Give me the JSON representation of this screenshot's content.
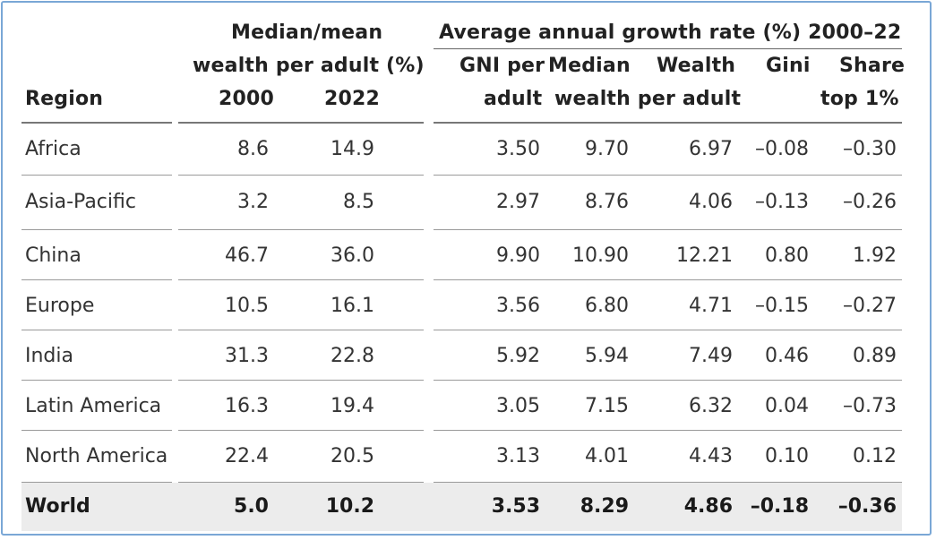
{
  "header": {
    "region_label": "Region",
    "group1_line1": "Median/mean",
    "group1_line2": "wealth per adult (%)",
    "col_2000": "2000",
    "col_2022": "2022",
    "group2_title": "Average annual growth rate (%) 2000–22",
    "gni_line1": "GNI per",
    "gni_line2": "adult",
    "median_line1": "Median",
    "median_line2": "wealth per adult",
    "wealth_line1": "Wealth",
    "gini_line1": "Gini",
    "share_line1": "Share",
    "share_line2": "top 1%"
  },
  "rows": [
    {
      "region": "Africa",
      "y2000": "8.6",
      "y2022": "14.9",
      "gni": "3.50",
      "median": "9.70",
      "wealth": "6.97",
      "gini": "–0.08",
      "share": "–0.30"
    },
    {
      "region": "Asia-Pacific",
      "y2000": "3.2",
      "y2022": "8.5",
      "gni": "2.97",
      "median": "8.76",
      "wealth": "4.06",
      "gini": "–0.13",
      "share": "–0.26"
    },
    {
      "region": "China",
      "y2000": "46.7",
      "y2022": "36.0",
      "gni": "9.90",
      "median": "10.90",
      "wealth": "12.21",
      "gini": "0.80",
      "share": "1.92"
    },
    {
      "region": "Europe",
      "y2000": "10.5",
      "y2022": "16.1",
      "gni": "3.56",
      "median": "6.80",
      "wealth": "4.71",
      "gini": "–0.15",
      "share": "–0.27"
    },
    {
      "region": "India",
      "y2000": "31.3",
      "y2022": "22.8",
      "gni": "5.92",
      "median": "5.94",
      "wealth": "7.49",
      "gini": "0.46",
      "share": "0.89"
    },
    {
      "region": "Latin America",
      "y2000": "16.3",
      "y2022": "19.4",
      "gni": "3.05",
      "median": "7.15",
      "wealth": "6.32",
      "gini": "0.04",
      "share": "–0.73"
    },
    {
      "region": "North America",
      "y2000": "22.4",
      "y2022": "20.5",
      "gni": "3.13",
      "median": "4.01",
      "wealth": "4.43",
      "gini": "0.10",
      "share": "0.12"
    }
  ],
  "world": {
    "region": "World",
    "y2000": "5.0",
    "y2022": "10.2",
    "gni": "3.53",
    "median": "8.29",
    "wealth": "4.86",
    "gini": "–0.18",
    "share": "–0.36"
  }
}
